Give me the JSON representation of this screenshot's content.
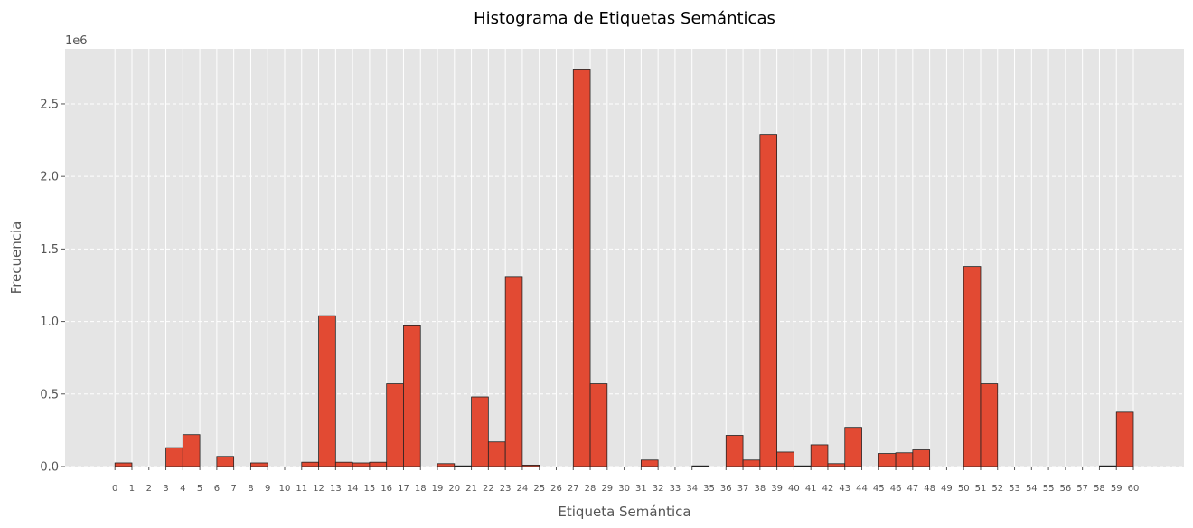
{
  "chart_data": {
    "type": "bar",
    "title": "Histograma de Etiquetas Semánticas",
    "xlabel": "Etiqueta Semántica",
    "ylabel": "Frecuencia",
    "y_scale_label": "1e6",
    "ylim": [
      0,
      2880000
    ],
    "grid": true,
    "bar_color": "#E24A33",
    "edge_color": "#222222",
    "background_color": "#E5E5E5",
    "grid_color": "#FFFFFF",
    "yticks": [
      0,
      500000,
      1000000,
      1500000,
      2000000,
      2500000
    ],
    "ytick_labels": [
      "0.0",
      "0.5",
      "1.0",
      "1.5",
      "2.0",
      "2.5"
    ],
    "xtick_labels": [
      "0",
      "1",
      "2",
      "3",
      "4",
      "5",
      "6",
      "7",
      "8",
      "9",
      "10",
      "11",
      "12",
      "13",
      "14",
      "15",
      "16",
      "17",
      "18",
      "19",
      "20",
      "21",
      "22",
      "23",
      "24",
      "25",
      "26",
      "27",
      "28",
      "29",
      "30",
      "31",
      "32",
      "33",
      "34",
      "35",
      "36",
      "37",
      "38",
      "39",
      "40",
      "41",
      "42",
      "43",
      "44",
      "45",
      "46",
      "47",
      "48",
      "49",
      "50",
      "51",
      "52",
      "53",
      "54",
      "55",
      "56",
      "57",
      "58",
      "59",
      "60"
    ],
    "bins": [
      {
        "x": 0,
        "value": 25000
      },
      {
        "x": 3,
        "value": 130000
      },
      {
        "x": 4,
        "value": 220000
      },
      {
        "x": 6,
        "value": 70000
      },
      {
        "x": 8,
        "value": 25000
      },
      {
        "x": 11,
        "value": 30000
      },
      {
        "x": 12,
        "value": 1040000
      },
      {
        "x": 13,
        "value": 30000
      },
      {
        "x": 14,
        "value": 25000
      },
      {
        "x": 15,
        "value": 30000
      },
      {
        "x": 16,
        "value": 570000
      },
      {
        "x": 17,
        "value": 970000
      },
      {
        "x": 19,
        "value": 20000
      },
      {
        "x": 20,
        "value": 5000
      },
      {
        "x": 21,
        "value": 480000
      },
      {
        "x": 22,
        "value": 170000
      },
      {
        "x": 23,
        "value": 1310000
      },
      {
        "x": 24,
        "value": 10000
      },
      {
        "x": 27,
        "value": 2740000
      },
      {
        "x": 28,
        "value": 570000
      },
      {
        "x": 31,
        "value": 45000
      },
      {
        "x": 34,
        "value": 5000
      },
      {
        "x": 36,
        "value": 215000
      },
      {
        "x": 37,
        "value": 45000
      },
      {
        "x": 38,
        "value": 2290000
      },
      {
        "x": 39,
        "value": 100000
      },
      {
        "x": 40,
        "value": 5000
      },
      {
        "x": 41,
        "value": 150000
      },
      {
        "x": 42,
        "value": 20000
      },
      {
        "x": 43,
        "value": 270000
      },
      {
        "x": 45,
        "value": 90000
      },
      {
        "x": 46,
        "value": 95000
      },
      {
        "x": 47,
        "value": 115000
      },
      {
        "x": 50,
        "value": 1380000
      },
      {
        "x": 51,
        "value": 570000
      },
      {
        "x": 58,
        "value": 5000
      },
      {
        "x": 59,
        "value": 375000
      }
    ]
  }
}
